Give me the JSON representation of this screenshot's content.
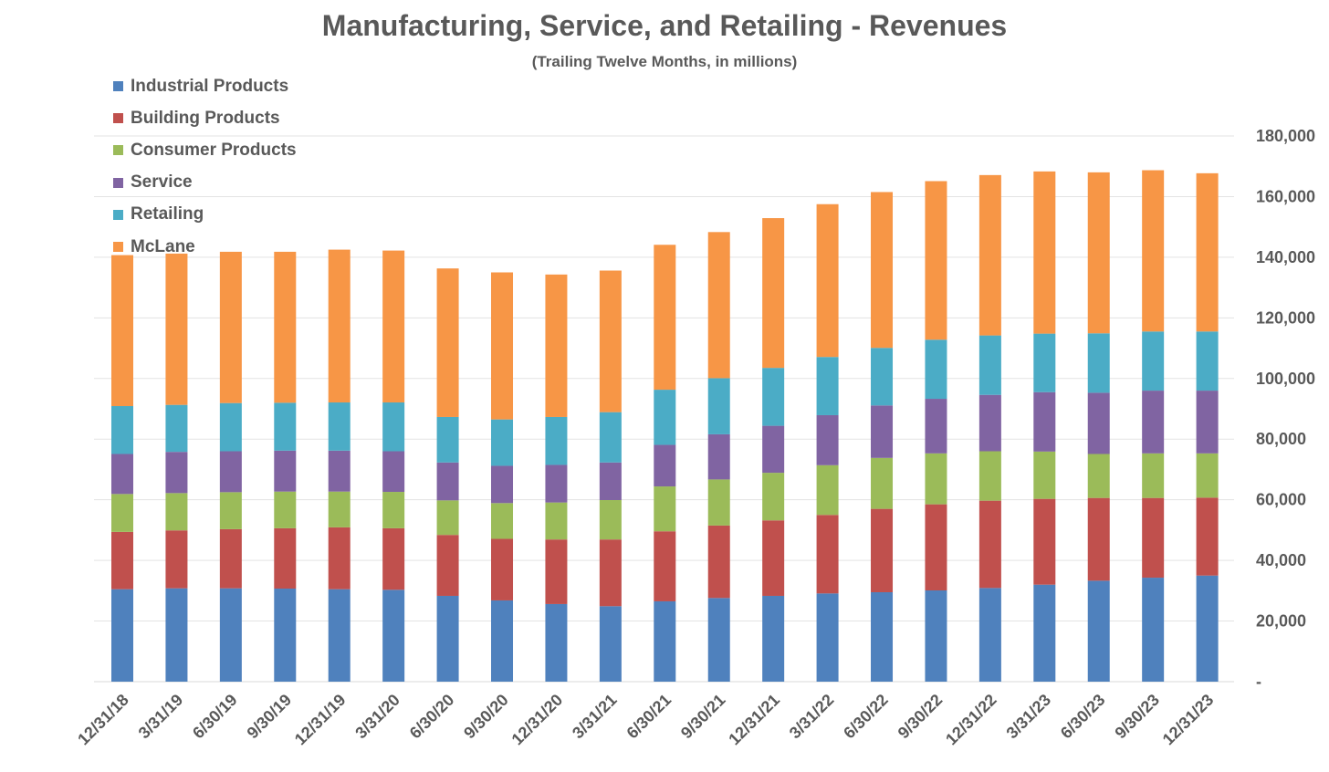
{
  "chart_data": {
    "type": "bar",
    "stacked": true,
    "title": "Manufacturing, Service, and Retailing  - Revenues",
    "subtitle": "(Trailing Twelve Months, in millions)",
    "xlabel": "",
    "ylabel": "",
    "ylim": [
      0,
      180000
    ],
    "y_axis_side": "right",
    "y_ticks": [
      {
        "value": 0,
        "label": "-"
      },
      {
        "value": 20000,
        "label": "20,000"
      },
      {
        "value": 40000,
        "label": "40,000"
      },
      {
        "value": 60000,
        "label": "60,000"
      },
      {
        "value": 80000,
        "label": "80,000"
      },
      {
        "value": 100000,
        "label": "100,000"
      },
      {
        "value": 120000,
        "label": "120,000"
      },
      {
        "value": 140000,
        "label": "140,000"
      },
      {
        "value": 160000,
        "label": "160,000"
      },
      {
        "value": 180000,
        "label": "180,000"
      }
    ],
    "grid": true,
    "legend_position": "top-left",
    "categories": [
      "12/31/18",
      "3/31/19",
      "6/30/19",
      "9/30/19",
      "12/31/19",
      "3/31/20",
      "6/30/20",
      "9/30/20",
      "12/31/20",
      "3/31/21",
      "6/30/21",
      "9/30/21",
      "12/31/21",
      "3/31/22",
      "6/30/22",
      "9/30/22",
      "12/31/22",
      "3/31/23",
      "6/30/23",
      "9/30/23",
      "12/31/23"
    ],
    "series": [
      {
        "name": "Industrial Products",
        "color": "#4F81BD",
        "values": [
          30500,
          30800,
          30800,
          30700,
          30500,
          30300,
          28300,
          26800,
          25600,
          24900,
          26500,
          27600,
          28300,
          29100,
          29500,
          30100,
          30900,
          32000,
          33300,
          34300,
          35000
        ]
      },
      {
        "name": "Building Products",
        "color": "#C0504D",
        "values": [
          18900,
          19100,
          19500,
          19900,
          20400,
          20300,
          20100,
          20300,
          21300,
          22000,
          23100,
          23900,
          24900,
          25900,
          27500,
          28400,
          28800,
          28300,
          27300,
          26300,
          25700
        ]
      },
      {
        "name": "Consumer Products",
        "color": "#9BBB59",
        "values": [
          12500,
          12300,
          12200,
          12100,
          11800,
          12000,
          11400,
          11800,
          12200,
          13000,
          14800,
          15200,
          15700,
          16400,
          16800,
          16800,
          16300,
          15600,
          14500,
          14700,
          14600
        ]
      },
      {
        "name": "Service",
        "color": "#8064A2",
        "values": [
          13200,
          13600,
          13500,
          13500,
          13500,
          13400,
          12500,
          12300,
          12400,
          12400,
          13700,
          14900,
          15500,
          16500,
          17300,
          18000,
          18600,
          19600,
          20200,
          20700,
          20700
        ]
      },
      {
        "name": "Retailing",
        "color": "#4BACC6",
        "values": [
          15800,
          15500,
          15900,
          15800,
          15900,
          16100,
          15000,
          15300,
          15800,
          16600,
          18200,
          18500,
          19100,
          19200,
          19000,
          19500,
          19600,
          19300,
          19600,
          19500,
          19500
        ]
      },
      {
        "name": "McLane",
        "color": "#F79646",
        "values": [
          49800,
          49900,
          49900,
          49800,
          50400,
          50100,
          49000,
          48500,
          47000,
          46700,
          47800,
          48200,
          49400,
          50400,
          51400,
          52300,
          52900,
          53500,
          53100,
          53200,
          52200
        ]
      }
    ]
  }
}
